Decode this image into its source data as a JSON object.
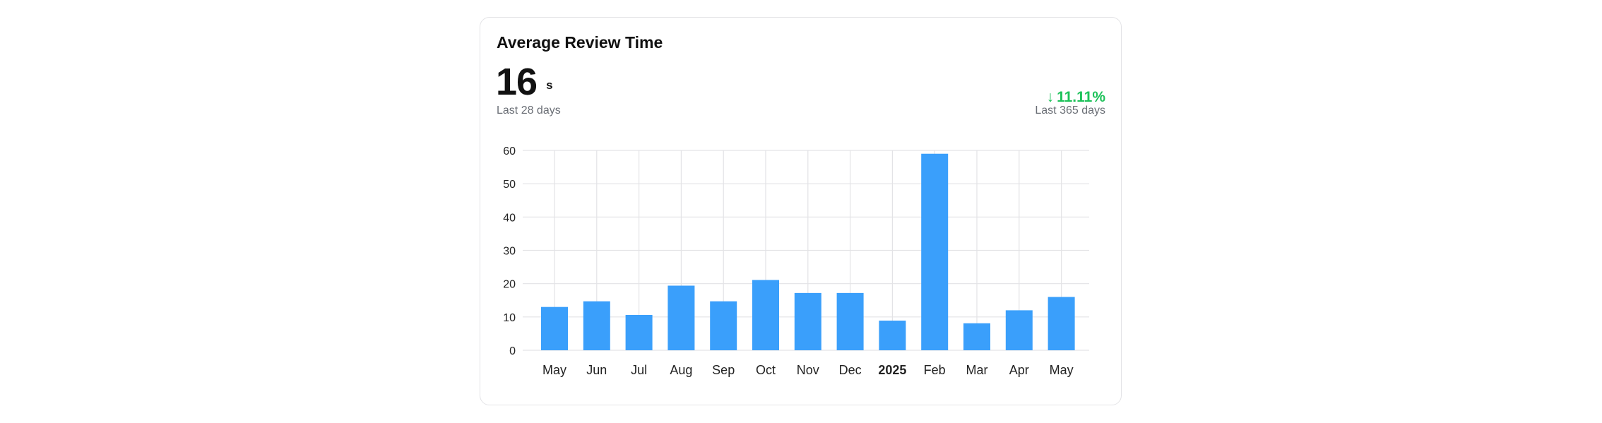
{
  "card": {
    "title": "Average Review Time",
    "metric_value": "16",
    "metric_unit": "s",
    "metric_period": "Last 28 days",
    "change_arrow": "↓",
    "change_value": "11.11%",
    "change_period": "Last 365 days",
    "change_color": "#1ec25a"
  },
  "chart_data": {
    "type": "bar",
    "categories": [
      "May",
      "Jun",
      "Jul",
      "Aug",
      "Sep",
      "Oct",
      "Nov",
      "Dec",
      "2025",
      "Feb",
      "Mar",
      "Apr",
      "May"
    ],
    "bold_categories": [
      "2025"
    ],
    "values": [
      13,
      14.7,
      10.6,
      19.4,
      14.7,
      21.1,
      17.2,
      17.2,
      8.9,
      59,
      8.1,
      12,
      16
    ],
    "yticks": [
      0,
      10,
      20,
      30,
      40,
      50,
      60
    ],
    "ylim": [
      0,
      60
    ],
    "grid": true,
    "bar_color": "#3a9ffb",
    "grid_color": "#e3e3e6",
    "title": "",
    "xlabel": "",
    "ylabel": ""
  }
}
